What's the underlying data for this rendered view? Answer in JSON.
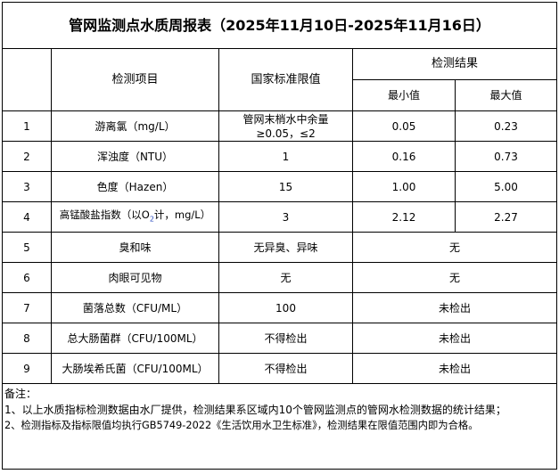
{
  "title": "管网监测点水质周报表（2025年11月10日-2025年11月16日）",
  "headers": {
    "item": "检测项目",
    "standard": "国家标准限值",
    "result": "检测结果",
    "min": "最小值",
    "max": "最大值"
  },
  "rows": [
    {
      "no": "1",
      "item": "游离氯（mg/L）",
      "standard": "管网末梢水中余量≥0.05，≤2",
      "min": "0.05",
      "max": "0.23"
    },
    {
      "no": "2",
      "item": "浑浊度（NTU）",
      "standard": "1",
      "min": "0.16",
      "max": "0.73"
    },
    {
      "no": "3",
      "item": "色度（Hazen）",
      "standard": "15",
      "min": "1.00",
      "max": "5.00"
    },
    {
      "no": "4",
      "item_pre": "高锰酸盐指数（以O",
      "item_sub": "2",
      "item_post": "计，mg/L）",
      "standard": "3",
      "min": "2.12",
      "max": "2.27"
    },
    {
      "no": "5",
      "item": "臭和味",
      "standard": "无异臭、异味",
      "result": "无"
    },
    {
      "no": "6",
      "item": "肉眼可见物",
      "standard": "无",
      "result": "无"
    },
    {
      "no": "7",
      "item": "菌落总数（CFU/ML）",
      "standard": "100",
      "result": "未检出"
    },
    {
      "no": "8",
      "item": "总大肠菌群（CFU/100ML）",
      "standard": "不得检出",
      "result": "未检出"
    },
    {
      "no": "9",
      "item": "大肠埃希氏菌（CFU/100ML）",
      "standard": "不得检出",
      "result": "未检出"
    }
  ],
  "notes": {
    "heading": "备注：",
    "line1": "1、以上水质指标检测数据由水厂提供，检测结果系区域内10个管网监测点的管网水检测数据的统计结果；",
    "line2": "2、检测指标及指标限值均执行GB5749-2022《生活饮用水卫生标准》，检测结果在限值范围内即为合格。"
  }
}
